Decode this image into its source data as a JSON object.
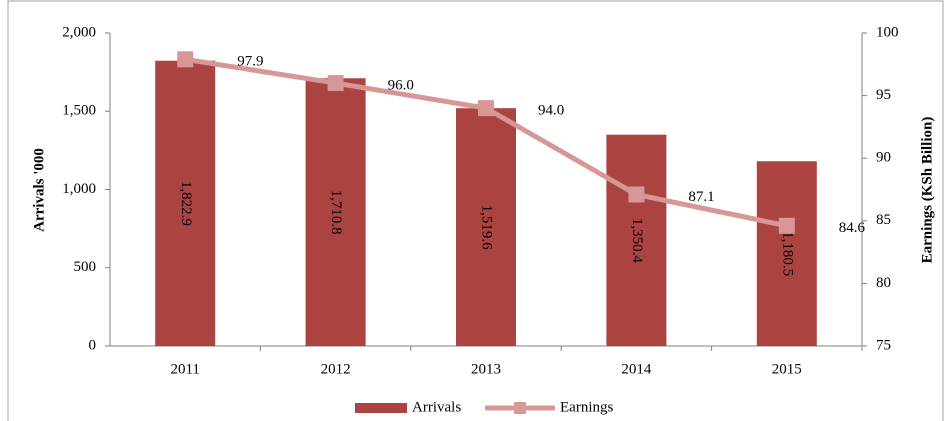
{
  "chart_data": {
    "type": "bar",
    "categories": [
      "2011",
      "2012",
      "2013",
      "2014",
      "2015"
    ],
    "series": [
      {
        "name": "Arrivals",
        "type": "bar",
        "color": "#ab4440",
        "values": [
          1822.9,
          1710.8,
          1519.6,
          1350.4,
          1180.5
        ],
        "value_labels": [
          "1,822.9",
          "1,710.8",
          "1,519.6",
          "1,350.4",
          "1,180.5"
        ]
      },
      {
        "name": "Earnings",
        "type": "line",
        "axis": "y2",
        "color": "#d69796",
        "values": [
          97.9,
          96.0,
          94.0,
          87.1,
          84.6
        ],
        "value_labels": [
          "97.9",
          "96.0",
          "94.0",
          "87.1",
          "84.6"
        ]
      }
    ],
    "ylabel": "Arrivals '000",
    "y2label": "Earnings (KSh Billion)",
    "ylim": [
      0,
      2000
    ],
    "yticks": [
      0,
      500,
      {
        "value": 1000,
        "label": "1,000"
      },
      {
        "value": 1500,
        "label": "1,500"
      },
      {
        "value": 2000,
        "label": "2,000"
      }
    ],
    "y2lim": [
      75,
      100
    ],
    "y2ticks": [
      75,
      80,
      85,
      90,
      95,
      100
    ],
    "legend": "bottom"
  }
}
